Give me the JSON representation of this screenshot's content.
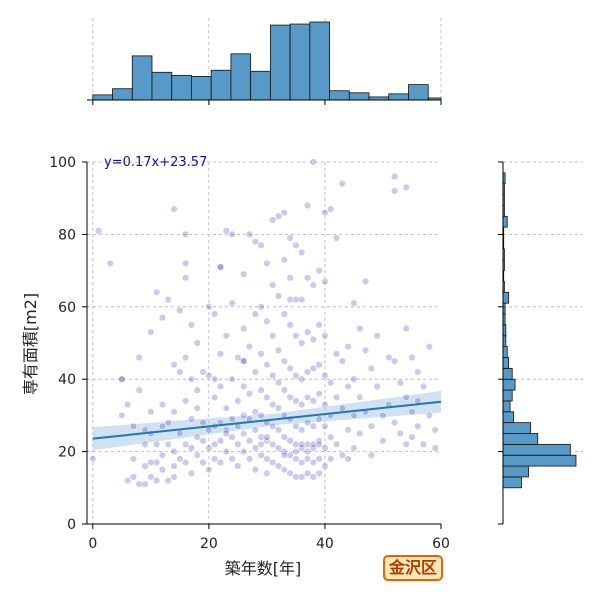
{
  "badge": "金沢区",
  "chart_data": {
    "type": "scatter",
    "xlabel": "築年数[年]",
    "ylabel": "専有面積[m2]",
    "xlim": [
      -1,
      60
    ],
    "ylim": [
      0,
      100
    ],
    "xticks": [
      "0",
      "20",
      "40",
      "60"
    ],
    "yticks": [
      "0",
      "20",
      "40",
      "60",
      "80",
      "100"
    ],
    "grid": true,
    "annotation": "y=0.17x+23.57",
    "regression": {
      "slope": 0.17,
      "intercept": 23.57
    },
    "colors": {
      "points": "#2a2ab8",
      "line": "#1f77b4",
      "band": "#a9c8e6",
      "hist": "#5799c7"
    },
    "top_histogram": {
      "bin_edges": [
        0,
        3.4,
        6.8,
        10.2,
        13.6,
        17,
        20.4,
        23.8,
        27.2,
        30.6,
        34,
        37.4,
        40.8,
        44.2,
        47.6,
        51,
        54.4,
        57.8,
        60
      ],
      "counts": [
        5,
        11,
        43,
        27,
        24,
        23,
        29,
        45,
        28,
        73,
        74,
        76,
        9,
        7,
        3,
        6,
        15,
        2
      ]
    },
    "right_histogram": {
      "bin_edges": [
        10,
        13,
        16,
        19,
        22,
        25,
        28,
        31,
        34,
        37,
        40,
        43,
        46,
        49,
        52,
        55,
        58,
        61,
        64,
        67,
        70,
        73,
        76,
        79,
        82,
        85,
        88,
        91,
        94,
        97,
        100
      ],
      "counts": [
        26,
        36,
        103,
        95,
        49,
        39,
        15,
        10,
        13,
        17,
        13,
        8,
        6,
        4,
        4,
        3,
        3,
        8,
        2,
        1,
        2,
        2,
        1,
        1,
        6,
        2,
        2,
        2,
        3,
        0
      ]
    },
    "points": [
      [
        0,
        18
      ],
      [
        1,
        81
      ],
      [
        3,
        72
      ],
      [
        5,
        30
      ],
      [
        5,
        40
      ],
      [
        6,
        33
      ],
      [
        6,
        12
      ],
      [
        7,
        27
      ],
      [
        7,
        18
      ],
      [
        7,
        13
      ],
      [
        8,
        37
      ],
      [
        8,
        46
      ],
      [
        8,
        11
      ],
      [
        9,
        22
      ],
      [
        9,
        16
      ],
      [
        9,
        11
      ],
      [
        9,
        26
      ],
      [
        10,
        53
      ],
      [
        10,
        25
      ],
      [
        10,
        13
      ],
      [
        10,
        31
      ],
      [
        11,
        64
      ],
      [
        11,
        22
      ],
      [
        11,
        12
      ],
      [
        11,
        17
      ],
      [
        12,
        57
      ],
      [
        12,
        33
      ],
      [
        12,
        19
      ],
      [
        12,
        15
      ],
      [
        12,
        27
      ],
      [
        13,
        62
      ],
      [
        13,
        28
      ],
      [
        13,
        12
      ],
      [
        13,
        22
      ],
      [
        14,
        44
      ],
      [
        14,
        31
      ],
      [
        14,
        20
      ],
      [
        14,
        16
      ],
      [
        14,
        87
      ],
      [
        15,
        59
      ],
      [
        15,
        42
      ],
      [
        15,
        25
      ],
      [
        15,
        18
      ],
      [
        16,
        80
      ],
      [
        16,
        72
      ],
      [
        16,
        68
      ],
      [
        16,
        46
      ],
      [
        16,
        34
      ],
      [
        16,
        22
      ],
      [
        16,
        17
      ],
      [
        17,
        55
      ],
      [
        17,
        40
      ],
      [
        17,
        29
      ],
      [
        17,
        21
      ],
      [
        17,
        14
      ],
      [
        18,
        50
      ],
      [
        18,
        37
      ],
      [
        18,
        24
      ],
      [
        18,
        19
      ],
      [
        18,
        32
      ],
      [
        19,
        28
      ],
      [
        19,
        23
      ],
      [
        19,
        17
      ],
      [
        19,
        42
      ],
      [
        20,
        60
      ],
      [
        20,
        41
      ],
      [
        20,
        26
      ],
      [
        20,
        21
      ],
      [
        20,
        15
      ],
      [
        21,
        58
      ],
      [
        21,
        35
      ],
      [
        21,
        27
      ],
      [
        21,
        22
      ],
      [
        21,
        18
      ],
      [
        22,
        71
      ],
      [
        22,
        47
      ],
      [
        22,
        38
      ],
      [
        22,
        28
      ],
      [
        22,
        23
      ],
      [
        22,
        17
      ],
      [
        23,
        81
      ],
      [
        23,
        52
      ],
      [
        23,
        32
      ],
      [
        23,
        26
      ],
      [
        23,
        20
      ],
      [
        24,
        80
      ],
      [
        24,
        61
      ],
      [
        24,
        40
      ],
      [
        24,
        29
      ],
      [
        24,
        24
      ],
      [
        24,
        18
      ],
      [
        25,
        46
      ],
      [
        25,
        34
      ],
      [
        25,
        27
      ],
      [
        25,
        22
      ],
      [
        25,
        16
      ],
      [
        26,
        69
      ],
      [
        26,
        54
      ],
      [
        26,
        45
      ],
      [
        26,
        38
      ],
      [
        26,
        30
      ],
      [
        26,
        25
      ],
      [
        26,
        20
      ],
      [
        27,
        80
      ],
      [
        27,
        49
      ],
      [
        27,
        36
      ],
      [
        27,
        29
      ],
      [
        27,
        23
      ],
      [
        27,
        18
      ],
      [
        28,
        78
      ],
      [
        28,
        58
      ],
      [
        28,
        42
      ],
      [
        28,
        31
      ],
      [
        28,
        26
      ],
      [
        28,
        21
      ],
      [
        28,
        15
      ],
      [
        29,
        77
      ],
      [
        29,
        60
      ],
      [
        29,
        47
      ],
      [
        29,
        37
      ],
      [
        29,
        30
      ],
      [
        29,
        24
      ],
      [
        29,
        19
      ],
      [
        30,
        72
      ],
      [
        30,
        56
      ],
      [
        30,
        44
      ],
      [
        30,
        35
      ],
      [
        30,
        28
      ],
      [
        30,
        23
      ],
      [
        30,
        18
      ],
      [
        30,
        14
      ],
      [
        31,
        84
      ],
      [
        31,
        66
      ],
      [
        31,
        52
      ],
      [
        31,
        41
      ],
      [
        31,
        33
      ],
      [
        31,
        27
      ],
      [
        31,
        22
      ],
      [
        31,
        17
      ],
      [
        32,
        85
      ],
      [
        32,
        63
      ],
      [
        32,
        48
      ],
      [
        32,
        39
      ],
      [
        32,
        32
      ],
      [
        32,
        26
      ],
      [
        32,
        21
      ],
      [
        32,
        16
      ],
      [
        33,
        86
      ],
      [
        33,
        73
      ],
      [
        33,
        58
      ],
      [
        33,
        45
      ],
      [
        33,
        37
      ],
      [
        33,
        30
      ],
      [
        33,
        24
      ],
      [
        33,
        20
      ],
      [
        33,
        15
      ],
      [
        34,
        79
      ],
      [
        34,
        68
      ],
      [
        34,
        55
      ],
      [
        34,
        43
      ],
      [
        34,
        35
      ],
      [
        34,
        29
      ],
      [
        34,
        23
      ],
      [
        34,
        19
      ],
      [
        34,
        14
      ],
      [
        35,
        77
      ],
      [
        35,
        62
      ],
      [
        35,
        52
      ],
      [
        35,
        41
      ],
      [
        35,
        34
      ],
      [
        35,
        27
      ],
      [
        35,
        22
      ],
      [
        35,
        18
      ],
      [
        35,
        13
      ],
      [
        36,
        75
      ],
      [
        36,
        62
      ],
      [
        36,
        50
      ],
      [
        36,
        40
      ],
      [
        36,
        33
      ],
      [
        36,
        26
      ],
      [
        36,
        21
      ],
      [
        36,
        17
      ],
      [
        36,
        13
      ],
      [
        37,
        88
      ],
      [
        37,
        68
      ],
      [
        37,
        53
      ],
      [
        37,
        42
      ],
      [
        37,
        35
      ],
      [
        37,
        28
      ],
      [
        37,
        22
      ],
      [
        37,
        18
      ],
      [
        37,
        14
      ],
      [
        38,
        100
      ],
      [
        38,
        66
      ],
      [
        38,
        51
      ],
      [
        38,
        43
      ],
      [
        38,
        34
      ],
      [
        38,
        27
      ],
      [
        38,
        21
      ],
      [
        38,
        17
      ],
      [
        38,
        13
      ],
      [
        39,
        70
      ],
      [
        39,
        55
      ],
      [
        39,
        44
      ],
      [
        39,
        36
      ],
      [
        39,
        29
      ],
      [
        39,
        23
      ],
      [
        39,
        18
      ],
      [
        39,
        14
      ],
      [
        40,
        86
      ],
      [
        40,
        67
      ],
      [
        40,
        52
      ],
      [
        40,
        41
      ],
      [
        40,
        33
      ],
      [
        40,
        27
      ],
      [
        40,
        21
      ],
      [
        40,
        16
      ],
      [
        41,
        87
      ],
      [
        41,
        39
      ],
      [
        41,
        30
      ],
      [
        41,
        24
      ],
      [
        41,
        18
      ],
      [
        42,
        79
      ],
      [
        42,
        47
      ],
      [
        42,
        35
      ],
      [
        42,
        22
      ],
      [
        43,
        94
      ],
      [
        43,
        45
      ],
      [
        43,
        32
      ],
      [
        43,
        19
      ],
      [
        44,
        49
      ],
      [
        44,
        38
      ],
      [
        44,
        26
      ],
      [
        44,
        18
      ],
      [
        45,
        61
      ],
      [
        45,
        40
      ],
      [
        45,
        30
      ],
      [
        45,
        21
      ],
      [
        46,
        54
      ],
      [
        46,
        35
      ],
      [
        46,
        25
      ],
      [
        47,
        67
      ],
      [
        47,
        48
      ],
      [
        47,
        31
      ],
      [
        48,
        43
      ],
      [
        48,
        27
      ],
      [
        48,
        19
      ],
      [
        49,
        52
      ],
      [
        49,
        38
      ],
      [
        50,
        30
      ],
      [
        50,
        23
      ],
      [
        51,
        46
      ],
      [
        51,
        33
      ],
      [
        52,
        96
      ],
      [
        52,
        92
      ],
      [
        52,
        45
      ],
      [
        52,
        28
      ],
      [
        53,
        39
      ],
      [
        53,
        25
      ],
      [
        54,
        93
      ],
      [
        54,
        54
      ],
      [
        54,
        35
      ],
      [
        54,
        22
      ],
      [
        55,
        46
      ],
      [
        55,
        31
      ],
      [
        55,
        24
      ],
      [
        56,
        42
      ],
      [
        56,
        34
      ],
      [
        56,
        27
      ],
      [
        57,
        38
      ],
      [
        57,
        22
      ],
      [
        58,
        49
      ],
      [
        58,
        30
      ],
      [
        59,
        26
      ],
      [
        59,
        21
      ],
      [
        22,
        71
      ],
      [
        34,
        62
      ],
      [
        26,
        45
      ],
      [
        5,
        40
      ],
      [
        23,
        25
      ],
      [
        21,
        40
      ],
      [
        10,
        17
      ],
      [
        14,
        13
      ],
      [
        36,
        22
      ],
      [
        37,
        20
      ],
      [
        38,
        22
      ],
      [
        39,
        22
      ],
      [
        35,
        20
      ],
      [
        33,
        19
      ],
      [
        30,
        24
      ],
      [
        29,
        22
      ]
    ]
  }
}
